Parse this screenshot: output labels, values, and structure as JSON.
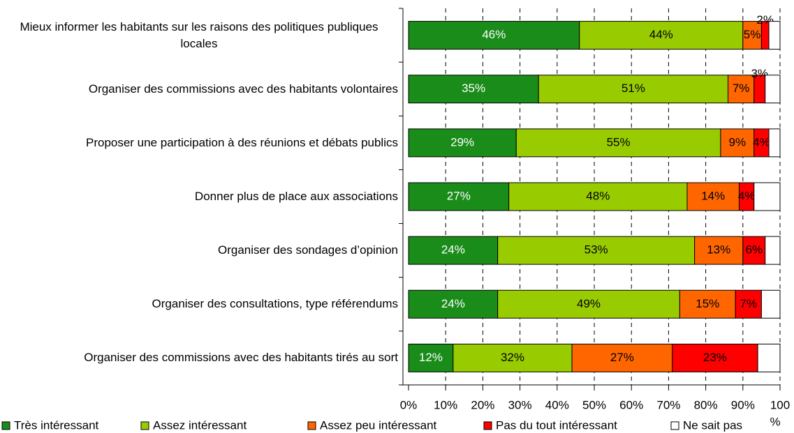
{
  "chart_data": {
    "type": "stacked_barh",
    "categories": [
      "Mieux informer les habitants sur les raisons des politiques publiques locales",
      "Organiser des commissions avec des habitants volontaires",
      "Proposer une participation à des réunions et débats publics",
      "Donner plus de place aux associations",
      "Organiser des sondages d’opinion",
      "Organiser des consultations, type référendums",
      "Organiser des commissions avec des habitants tirés au sort"
    ],
    "series": [
      {
        "name": "Très intéressant",
        "color": "#1a8c1a",
        "values": [
          46,
          35,
          29,
          27,
          24,
          24,
          12
        ],
        "value_labels": [
          "46%",
          "35%",
          "29%",
          "27%",
          "24%",
          "24%",
          "12%"
        ]
      },
      {
        "name": "Assez intéressant",
        "color": "#99cc00",
        "values": [
          44,
          51,
          55,
          48,
          53,
          49,
          32
        ],
        "value_labels": [
          "44%",
          "51%",
          "55%",
          "48%",
          "53%",
          "49%",
          "32%"
        ]
      },
      {
        "name": "Assez peu intéressant",
        "color": "#ff6600",
        "values": [
          5,
          7,
          9,
          14,
          13,
          15,
          27
        ],
        "value_labels": [
          "5%",
          "7%",
          "9%",
          "14%",
          "13%",
          "15%",
          "27%"
        ]
      },
      {
        "name": "Pas du tout intéressant",
        "color": "#ff0000",
        "values": [
          2,
          3,
          4,
          4,
          6,
          7,
          23
        ],
        "value_labels": [
          "2%",
          "3%",
          "4%",
          "4%",
          "6%",
          "7%",
          "23%"
        ]
      },
      {
        "name": "Ne sait pas",
        "color": "#ffffff",
        "values": [
          3,
          4,
          3,
          7,
          4,
          5,
          6
        ]
      }
    ],
    "xlabel": "%",
    "xlim": [
      0,
      100
    ],
    "xticks": [
      {
        "value": 0,
        "label": "0%"
      },
      {
        "value": 10,
        "label": "10%"
      },
      {
        "value": 20,
        "label": "20%"
      },
      {
        "value": 30,
        "label": "30%"
      },
      {
        "value": 40,
        "label": "40%"
      },
      {
        "value": 50,
        "label": "50%"
      },
      {
        "value": 60,
        "label": "60%"
      },
      {
        "value": 70,
        "label": "70%"
      },
      {
        "value": 80,
        "label": "80%"
      },
      {
        "value": 90,
        "label": "90%"
      },
      100
    ],
    "grid": true,
    "legend": "bottom"
  }
}
